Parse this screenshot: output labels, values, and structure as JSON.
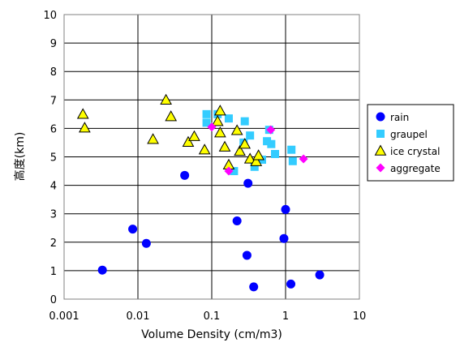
{
  "chart_data": {
    "type": "scatter",
    "xlabel": "Volume Density (cm/m3)",
    "ylabel": "高度(km)",
    "xscale": "log",
    "xlim": [
      0.001,
      10
    ],
    "ylim": [
      0,
      10
    ],
    "x_ticks": [
      "0.001",
      "0.01",
      "0.1",
      "1",
      "10"
    ],
    "y_ticks": [
      "0",
      "1",
      "2",
      "3",
      "4",
      "5",
      "6",
      "7",
      "8",
      "9",
      "10"
    ],
    "grid": true,
    "legend_position": "right",
    "series": [
      {
        "name": "rain",
        "marker": "circle",
        "color": "#0000ff",
        "points": [
          [
            0.0033,
            1.02
          ],
          [
            0.0085,
            2.46
          ],
          [
            0.013,
            1.96
          ],
          [
            0.043,
            4.35
          ],
          [
            0.22,
            2.75
          ],
          [
            0.3,
            1.54
          ],
          [
            0.31,
            4.07
          ],
          [
            0.37,
            0.43
          ],
          [
            1.0,
            3.15
          ],
          [
            0.95,
            2.13
          ],
          [
            1.18,
            0.53
          ],
          [
            2.9,
            0.85
          ]
        ]
      },
      {
        "name": "graupel",
        "marker": "square",
        "color": "#33ccff",
        "points": [
          [
            0.085,
            6.5
          ],
          [
            0.085,
            6.2
          ],
          [
            0.12,
            6.5
          ],
          [
            0.17,
            6.35
          ],
          [
            0.28,
            6.25
          ],
          [
            0.2,
            4.5
          ],
          [
            0.27,
            5.5
          ],
          [
            0.33,
            5.75
          ],
          [
            0.38,
            4.65
          ],
          [
            0.48,
            4.9
          ],
          [
            0.56,
            5.55
          ],
          [
            0.6,
            5.95
          ],
          [
            0.64,
            5.45
          ],
          [
            0.72,
            5.1
          ],
          [
            1.2,
            5.25
          ],
          [
            1.25,
            4.85
          ]
        ]
      },
      {
        "name": "ice crystal",
        "marker": "triangle",
        "color": "#ffff00",
        "points": [
          [
            0.0018,
            6.5
          ],
          [
            0.0019,
            6.02
          ],
          [
            0.016,
            5.62
          ],
          [
            0.024,
            7.0
          ],
          [
            0.028,
            6.42
          ],
          [
            0.048,
            5.52
          ],
          [
            0.058,
            5.72
          ],
          [
            0.08,
            5.25
          ],
          [
            0.12,
            6.25
          ],
          [
            0.13,
            6.62
          ],
          [
            0.13,
            5.85
          ],
          [
            0.15,
            5.35
          ],
          [
            0.17,
            4.72
          ],
          [
            0.22,
            5.93
          ],
          [
            0.24,
            5.2
          ],
          [
            0.28,
            5.45
          ],
          [
            0.33,
            4.93
          ],
          [
            0.4,
            4.84
          ],
          [
            0.43,
            5.05
          ]
        ]
      },
      {
        "name": "aggregate",
        "marker": "diamond",
        "color": "#ff00ff",
        "points": [
          [
            0.1,
            6.05
          ],
          [
            0.17,
            4.5
          ],
          [
            0.63,
            5.95
          ],
          [
            1.75,
            4.93
          ]
        ]
      }
    ]
  }
}
